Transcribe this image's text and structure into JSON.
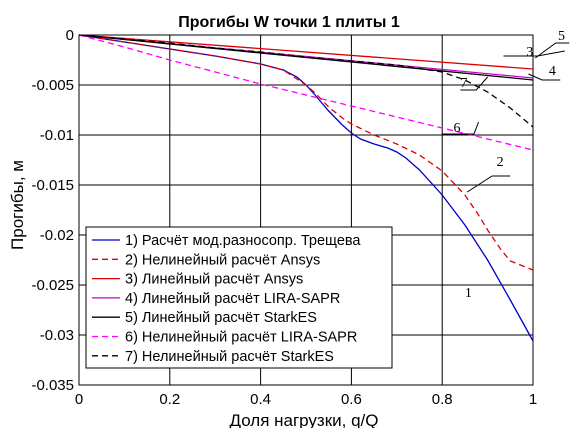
{
  "chart_data": {
    "type": "line",
    "title": "Прогибы W точки 1 плиты 1",
    "xlabel": "Доля нагрузки, q/Q",
    "ylabel": "Прогибы, м",
    "xlim": [
      0,
      1
    ],
    "ylim": [
      -0.035,
      0
    ],
    "x_ticks": [
      "0",
      "0.2",
      "0.4",
      "0.6",
      "0.8",
      "1"
    ],
    "y_ticks": [
      "0",
      "-0.005",
      "-0.01",
      "-0.015",
      "-0.02",
      "-0.025",
      "-0.03",
      "-0.035"
    ],
    "grid": true,
    "legend_position": "bottom-left",
    "series": [
      {
        "name": "1) Расчёт мод.разносопр. Трещева",
        "color": "#0000cc",
        "dash": "solid",
        "x": [
          0,
          0.1,
          0.2,
          0.3,
          0.4,
          0.45,
          0.48,
          0.5,
          0.52,
          0.55,
          0.58,
          0.6,
          0.62,
          0.65,
          0.68,
          0.7,
          0.72,
          0.75,
          0.8,
          0.85,
          0.9,
          0.95,
          1.0
        ],
        "y": [
          0,
          -0.0007,
          -0.0014,
          -0.0021,
          -0.0029,
          -0.0035,
          -0.0042,
          -0.005,
          -0.006,
          -0.0076,
          -0.009,
          -0.0098,
          -0.0104,
          -0.0109,
          -0.0113,
          -0.0117,
          -0.0123,
          -0.0135,
          -0.016,
          -0.019,
          -0.0225,
          -0.0265,
          -0.0306
        ]
      },
      {
        "name": "2) Нелинейный расчёт Ansys",
        "color": "#dd0000",
        "dash": "dashed",
        "x": [
          0,
          0.1,
          0.2,
          0.3,
          0.4,
          0.45,
          0.5,
          0.52,
          0.55,
          0.58,
          0.6,
          0.65,
          0.7,
          0.75,
          0.8,
          0.85,
          0.88,
          0.9,
          0.93,
          0.95,
          1.0
        ],
        "y": [
          0,
          -0.0007,
          -0.0014,
          -0.0021,
          -0.0029,
          -0.0035,
          -0.005,
          -0.0058,
          -0.0072,
          -0.0083,
          -0.0089,
          -0.01,
          -0.0109,
          -0.012,
          -0.0136,
          -0.016,
          -0.018,
          -0.0195,
          -0.0215,
          -0.0226,
          -0.0235
        ]
      },
      {
        "name": "3) Линейный расчёт Ansys",
        "color": "#dd0000",
        "dash": "solid",
        "x": [
          0,
          1
        ],
        "y": [
          0,
          -0.0034
        ]
      },
      {
        "name": "4) Линейный расчёт LIRA-SAPR",
        "color": "#cc00cc",
        "dash": "solid",
        "x": [
          0,
          1
        ],
        "y": [
          0,
          -0.0043
        ]
      },
      {
        "name": "5) Линейный расчёт StarkES",
        "color": "#000000",
        "dash": "solid",
        "x": [
          0,
          1
        ],
        "y": [
          0,
          -0.0045
        ]
      },
      {
        "name": "6) Нелинейный расчёт LIRA-SAPR",
        "color": "#ff00ff",
        "dash": "dashed",
        "x": [
          0,
          0.1,
          0.2,
          0.3,
          0.4,
          0.5,
          0.6,
          0.7,
          0.8,
          0.9,
          1.0
        ],
        "y": [
          0,
          -0.0012,
          -0.0025,
          -0.0037,
          -0.0049,
          -0.006,
          -0.0071,
          -0.0082,
          -0.0093,
          -0.0104,
          -0.0115
        ]
      },
      {
        "name": "7) Нелинейный расчёт StarkES",
        "color": "#000000",
        "dash": "dashed",
        "x": [
          0,
          0.1,
          0.2,
          0.3,
          0.4,
          0.5,
          0.6,
          0.7,
          0.8,
          0.85,
          0.9,
          0.95,
          1.0
        ],
        "y": [
          0,
          -0.0004,
          -0.0008,
          -0.0013,
          -0.0017,
          -0.0022,
          -0.0026,
          -0.003,
          -0.0037,
          -0.0045,
          -0.0057,
          -0.0073,
          -0.0092
        ]
      }
    ],
    "annotations": [
      {
        "label": "1",
        "text_at": [
          0.85,
          -0.0262
        ]
      },
      {
        "label": "2",
        "text_at": [
          0.92,
          -0.0131
        ],
        "leader": [
          [
            0.95,
            -0.0141
          ],
          [
            0.91,
            -0.0141
          ],
          [
            0.855,
            -0.0157
          ]
        ]
      },
      {
        "label": "3",
        "text_at": [
          0.985,
          -0.0021
        ],
        "leader": [
          [
            0.935,
            -0.0021
          ],
          [
            1.01,
            -0.0021
          ],
          [
            1.07,
            -0.0016
          ]
        ]
      },
      {
        "label": "4",
        "text_at": [
          1.035,
          -0.004
        ],
        "leader": [
          [
            1.06,
            -0.0045
          ],
          [
            1.02,
            -0.0045
          ],
          [
            0.99,
            -0.0039
          ]
        ]
      },
      {
        "label": "5",
        "text_at": [
          1.055,
          -0.0005
        ],
        "leader": [
          [
            1.08,
            -0.0008
          ],
          [
            1.05,
            -0.0008
          ],
          [
            1.005,
            -0.0023
          ]
        ]
      },
      {
        "label": "6",
        "text_at": [
          0.825,
          -0.0097
        ],
        "leader": [
          [
            0.8,
            -0.0099
          ],
          [
            0.87,
            -0.0099
          ],
          [
            0.88,
            -0.0087
          ]
        ]
      },
      {
        "label": "7",
        "text_at": [
          0.84,
          -0.0052
        ],
        "leader": [
          [
            0.84,
            -0.0055
          ],
          [
            0.875,
            -0.0055
          ],
          [
            0.9,
            -0.0042
          ]
        ]
      }
    ]
  }
}
